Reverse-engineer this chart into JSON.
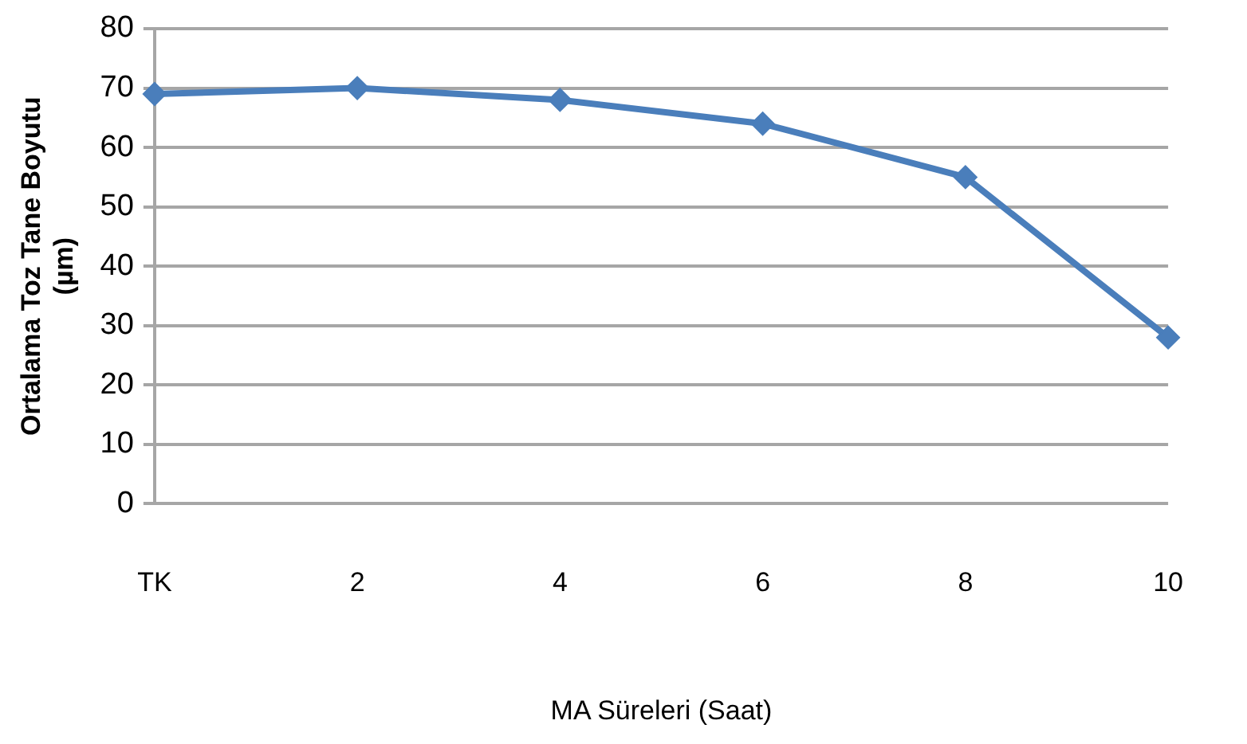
{
  "chart_data": {
    "type": "line",
    "xlabel": "MA Süreleri (Saat)",
    "ylabel": "Ortalama Toz Tane Boyutu\n(µm)",
    "categories": [
      "TK",
      "2",
      "4",
      "6",
      "8",
      "10"
    ],
    "series": [
      {
        "color": "#4a7ebb",
        "values": [
          69,
          70,
          68,
          64,
          55,
          28
        ]
      }
    ],
    "ylim": [
      0,
      80
    ],
    "yticks": [
      0,
      10,
      20,
      30,
      40,
      50,
      60,
      70,
      80
    ],
    "grid": "y",
    "legend": false,
    "marker": "diamond",
    "line_style": "solid"
  }
}
